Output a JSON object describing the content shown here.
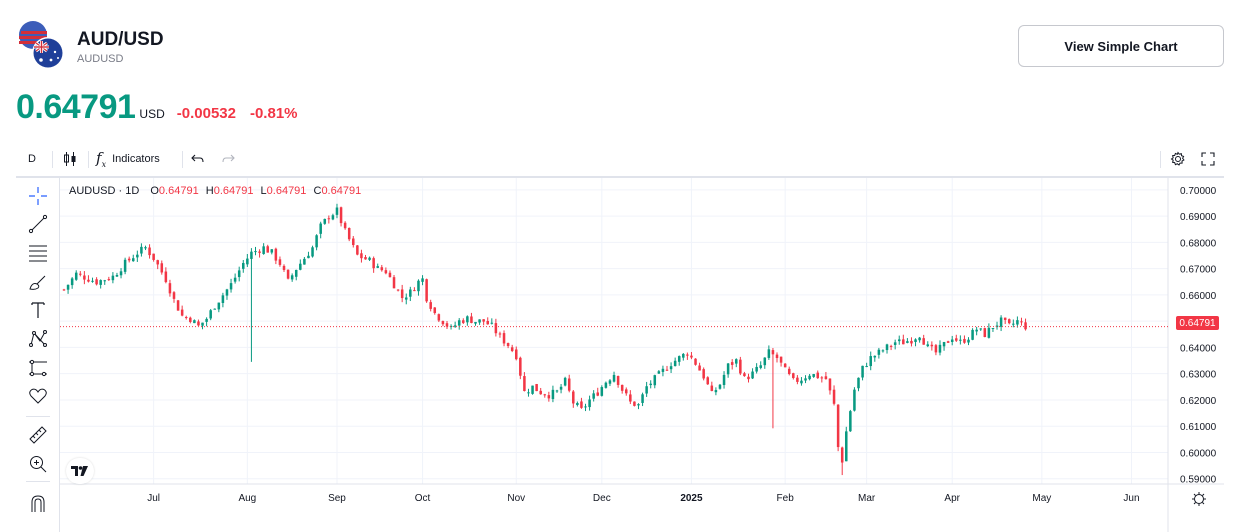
{
  "header": {
    "title": "AUD/USD",
    "subtitle": "AUDUSD",
    "simple_chart_button": "View Simple Chart",
    "price": "0.64791",
    "currency": "USD",
    "change": "-0.00532",
    "change_pct": "-0.81%"
  },
  "toolbar": {
    "interval": "D",
    "indicators_label": "Indicators"
  },
  "legend": {
    "symbol": "AUDUSD · 1D",
    "open_label": "O",
    "open": "0.64791",
    "high_label": "H",
    "high": "0.64791",
    "low_label": "L",
    "low": "0.64791",
    "close_label": "C",
    "close": "0.64791"
  },
  "colors": {
    "up": "#089981",
    "down": "#f23645",
    "grid": "#f0f3fa",
    "text": "#131722"
  },
  "left_tools": [
    "crosshair-icon",
    "trend-line-icon",
    "fib-retracement-icon",
    "brush-icon",
    "text-icon",
    "pattern-icon",
    "forecast-icon",
    "favorites-heart-icon",
    "ruler-icon",
    "zoom-in-icon",
    "magnet-icon"
  ],
  "chart_data": {
    "type": "candlestick",
    "symbol": "AUDUSD",
    "interval": "1D",
    "last_price": 0.64791,
    "last_price_label": "0.64791",
    "ylim": [
      0.588,
      0.7045
    ],
    "y_ticks": [
      "0.70000",
      "0.69000",
      "0.68000",
      "0.67000",
      "0.66000",
      "0.65000",
      "0.64000",
      "0.63000",
      "0.62000",
      "0.61000",
      "0.60000",
      "0.59000"
    ],
    "y_tick_values": [
      0.7,
      0.69,
      0.68,
      0.67,
      0.66,
      0.65,
      0.64,
      0.63,
      0.62,
      0.61,
      0.6,
      0.59
    ],
    "x_ticks": [
      {
        "label": "Jul",
        "day": 22
      },
      {
        "label": "Aug",
        "day": 45
      },
      {
        "label": "Sep",
        "day": 67
      },
      {
        "label": "Oct",
        "day": 88
      },
      {
        "label": "Nov",
        "day": 111
      },
      {
        "label": "Dec",
        "day": 132
      },
      {
        "label": "2025",
        "day": 154
      },
      {
        "label": "Feb",
        "day": 177
      },
      {
        "label": "Mar",
        "day": 197
      },
      {
        "label": "Apr",
        "day": 218
      },
      {
        "label": "May",
        "day": 240
      },
      {
        "label": "Jun",
        "day": 262
      }
    ],
    "num_days": 270,
    "path_points": [
      [
        0,
        0.662
      ],
      [
        3,
        0.668
      ],
      [
        8,
        0.665
      ],
      [
        12,
        0.667
      ],
      [
        15,
        0.672
      ],
      [
        18,
        0.676
      ],
      [
        20,
        0.678
      ],
      [
        22,
        0.674
      ],
      [
        25,
        0.666
      ],
      [
        27,
        0.658
      ],
      [
        29,
        0.652
      ],
      [
        31,
        0.651
      ],
      [
        33,
        0.648
      ],
      [
        35,
        0.651
      ],
      [
        37,
        0.656
      ],
      [
        39,
        0.66
      ],
      [
        41,
        0.664
      ],
      [
        44,
        0.672
      ],
      [
        46,
        0.676
      ],
      [
        49,
        0.678
      ],
      [
        51,
        0.676
      ],
      [
        53,
        0.672
      ],
      [
        55,
        0.665
      ],
      [
        57,
        0.67
      ],
      [
        59,
        0.674
      ],
      [
        61,
        0.678
      ],
      [
        63,
        0.686
      ],
      [
        65,
        0.69
      ],
      [
        67,
        0.692
      ],
      [
        69,
        0.684
      ],
      [
        72,
        0.675
      ],
      [
        75,
        0.673
      ],
      [
        77,
        0.67
      ],
      [
        79,
        0.669
      ],
      [
        81,
        0.664
      ],
      [
        83,
        0.659
      ],
      [
        85,
        0.661
      ],
      [
        87,
        0.665
      ],
      [
        88,
        0.666
      ],
      [
        89,
        0.659
      ],
      [
        91,
        0.653
      ],
      [
        93,
        0.65
      ],
      [
        95,
        0.647
      ],
      [
        97,
        0.65
      ],
      [
        99,
        0.651
      ],
      [
        101,
        0.65
      ],
      [
        103,
        0.65
      ],
      [
        105,
        0.648
      ],
      [
        107,
        0.644
      ],
      [
        109,
        0.641
      ],
      [
        111,
        0.637
      ],
      [
        112,
        0.63
      ],
      [
        113,
        0.623
      ],
      [
        115,
        0.625
      ],
      [
        117,
        0.623
      ],
      [
        119,
        0.622
      ],
      [
        121,
        0.623
      ],
      [
        123,
        0.627
      ],
      [
        125,
        0.619
      ],
      [
        127,
        0.616
      ],
      [
        129,
        0.62
      ],
      [
        131,
        0.623
      ],
      [
        133,
        0.627
      ],
      [
        135,
        0.63
      ],
      [
        137,
        0.624
      ],
      [
        139,
        0.619
      ],
      [
        141,
        0.618
      ],
      [
        143,
        0.625
      ],
      [
        145,
        0.628
      ],
      [
        147,
        0.631
      ],
      [
        149,
        0.634
      ],
      [
        151,
        0.636
      ],
      [
        153,
        0.638
      ],
      [
        155,
        0.634
      ],
      [
        157,
        0.629
      ],
      [
        159,
        0.622
      ],
      [
        161,
        0.626
      ],
      [
        163,
        0.633
      ],
      [
        165,
        0.635
      ],
      [
        167,
        0.628
      ],
      [
        169,
        0.63
      ],
      [
        171,
        0.633
      ],
      [
        173,
        0.638
      ],
      [
        175,
        0.636
      ],
      [
        177,
        0.631
      ],
      [
        179,
        0.627
      ],
      [
        181,
        0.628
      ],
      [
        183,
        0.63
      ],
      [
        185,
        0.629
      ],
      [
        187,
        0.628
      ],
      [
        189,
        0.618
      ],
      [
        190,
        0.602
      ],
      [
        191,
        0.597
      ],
      [
        192,
        0.608
      ],
      [
        194,
        0.624
      ],
      [
        196,
        0.632
      ],
      [
        198,
        0.636
      ],
      [
        200,
        0.638
      ],
      [
        202,
        0.64
      ],
      [
        204,
        0.642
      ],
      [
        206,
        0.642
      ],
      [
        208,
        0.643
      ],
      [
        210,
        0.645
      ],
      [
        212,
        0.64
      ],
      [
        214,
        0.638
      ],
      [
        216,
        0.641
      ],
      [
        218,
        0.644
      ],
      [
        220,
        0.642
      ],
      [
        222,
        0.644
      ],
      [
        224,
        0.647
      ],
      [
        226,
        0.645
      ],
      [
        228,
        0.648
      ],
      [
        230,
        0.65
      ],
      [
        232,
        0.648
      ],
      [
        234,
        0.65
      ],
      [
        236,
        0.648
      ]
    ]
  }
}
